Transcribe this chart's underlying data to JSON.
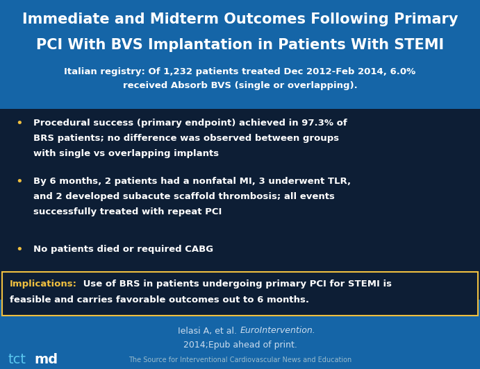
{
  "title_line1": "Immediate and Midterm Outcomes Following Primary",
  "title_line2": "PCI With BVS Implantation in Patients With STEMI",
  "subtitle_line1": "Italian registry: Of 1,232 patients treated Dec 2012-Feb 2014, 6.0%",
  "subtitle_line2": "received Absorb BVS (single or overlapping).",
  "bullet1_line1": "Procedural success (primary endpoint) achieved in 97.3% of",
  "bullet1_line2": "BRS patients; no difference was observed between groups",
  "bullet1_line3": "with single vs overlapping implants",
  "bullet2_line1": "By 6 months, 2 patients had a nonfatal MI, 3 underwent TLR,",
  "bullet2_line2": "and 2 developed subacute scaffold thrombosis; all events",
  "bullet2_line3": "successfully treated with repeat PCI",
  "bullet3_line1": "No patients died or required CABG",
  "implications_label": "Implications:",
  "implications_rest1": " Use of BRS in patients undergoing primary PCI for STEMI is",
  "implications_rest2": "feasible and carries favorable outcomes out to 6 months.",
  "citation_normal": "Ielasi A, et al. ",
  "citation_italic": "EuroIntervention.",
  "citation_line2": "2014;Epub ahead of print.",
  "footer_text": "The Source for Interventional Cardiovascular News and Education",
  "bg_top": "#1565a7",
  "bg_bullet": "#0d1e35",
  "bg_impl": "#0d1e35",
  "bg_footer": "#1060a0",
  "title_color": "#ffffff",
  "subtitle_color": "#ffffff",
  "bullet_color": "#ffffff",
  "bullet_dot_color": "#f0c040",
  "impl_label_color": "#f0c040",
  "impl_text_color": "#ffffff",
  "citation_color": "#ccddee",
  "footer_color": "#99bbcc",
  "tct_color": "#5bc8f0",
  "md_color": "#ffffff",
  "impl_border_color": "#f0c040"
}
